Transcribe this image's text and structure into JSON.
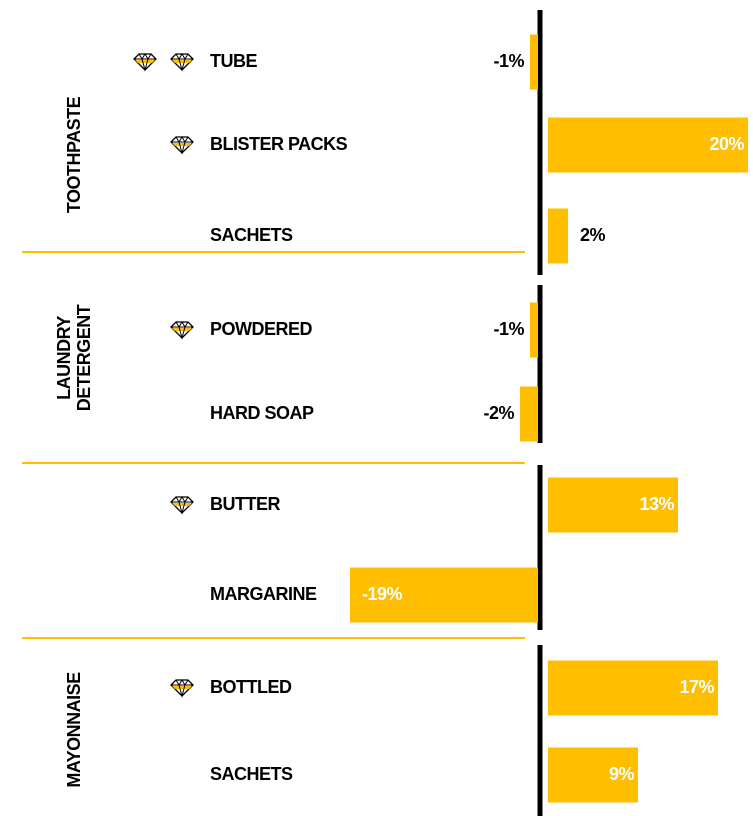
{
  "chart_data": {
    "type": "bar",
    "orientation": "horizontal",
    "color": "#FFBE00",
    "xlim": [
      -20,
      20
    ],
    "groups": [
      {
        "name": [
          "TOOTHPASTE"
        ],
        "categories": [
          "TUBE",
          "BLISTER PACKS",
          "SACHETS"
        ],
        "values": [
          -1,
          20,
          2
        ],
        "value_labels": [
          "-1%",
          "20%",
          "2%"
        ],
        "diamonds": [
          2,
          1,
          0
        ]
      },
      {
        "name": [
          "LAUNDRY",
          "DETERGENT"
        ],
        "categories": [
          "POWDERED",
          "HARD SOAP"
        ],
        "values": [
          -1,
          -2
        ],
        "value_labels": [
          "-1%",
          "-2%"
        ],
        "diamonds": [
          1,
          0
        ]
      },
      {
        "name": [],
        "categories": [
          "BUTTER",
          "MARGARINE"
        ],
        "values": [
          13,
          -19
        ],
        "value_labels": [
          "13%",
          "-19%"
        ],
        "diamonds": [
          1,
          0
        ]
      },
      {
        "name": [
          "MAYONNAISE"
        ],
        "categories": [
          "BOTTLED",
          "SACHETS"
        ],
        "values": [
          17,
          9
        ],
        "value_labels": [
          "17%",
          "9%"
        ],
        "diamonds": [
          1,
          0
        ]
      }
    ]
  }
}
